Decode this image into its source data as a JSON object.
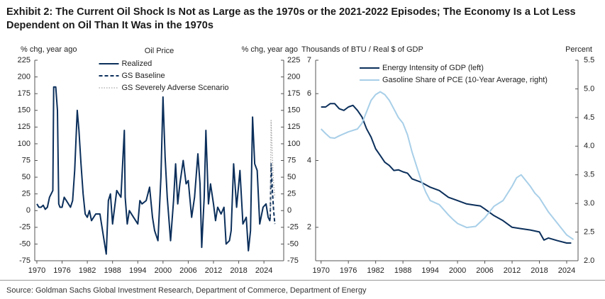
{
  "title": "Exhibit 2: The Current Oil Shock Is Not as Large as the 1970s or the 2021-2022 Episodes; The Economy Is a Lot Less Dependent on Oil Than It Was in the 1970s",
  "source": "Source: Goldman Sachs Global Investment Research, Department of Commerce, Department of Energy",
  "chart_data": [
    {
      "type": "line",
      "title": "Oil Price",
      "ylabel": "% chg, year ago",
      "y2label": "% chg, year ago",
      "xlim": [
        1969.5,
        2028.7
      ],
      "xticks": [
        1970,
        1976,
        1982,
        1988,
        1994,
        2000,
        2006,
        2012,
        2018,
        2024
      ],
      "ylim": [
        -75,
        225
      ],
      "yticks": [
        -75,
        -50,
        -25,
        0,
        25,
        50,
        75,
        100,
        125,
        150,
        175,
        200,
        225
      ],
      "y2lim": [
        -75,
        225
      ],
      "y2ticks": [
        -75,
        -50,
        -25,
        0,
        25,
        50,
        75,
        100,
        125,
        150,
        175,
        200,
        225
      ],
      "legend": "upper center",
      "series": [
        {
          "name": "Realized",
          "color": "#0b2f5b",
          "dash": "solid",
          "axis": "y",
          "x": [
            1970,
            1970.5,
            1971,
            1971.5,
            1972,
            1972.5,
            1973,
            1973.8,
            1974,
            1974.5,
            1974.9,
            1975.2,
            1975.5,
            1976,
            1976.5,
            1977,
            1978,
            1978.5,
            1979,
            1979.6,
            1980,
            1980.5,
            1981,
            1981.5,
            1982,
            1982.5,
            1983,
            1984,
            1985,
            1986,
            1986.5,
            1987,
            1987.5,
            1988,
            1989,
            1990,
            1990.8,
            1991,
            1991.5,
            1992,
            1993,
            1994,
            1994.5,
            1995,
            1996,
            1996.8,
            1997.5,
            1998,
            1998.8,
            1999.5,
            2000,
            2000.5,
            2001,
            2001.8,
            2002.5,
            2003,
            2003.5,
            2004,
            2004.8,
            2005.5,
            2006,
            2006.8,
            2007.5,
            2008.3,
            2008.8,
            2009.2,
            2009.8,
            2010.2,
            2010.8,
            2011.3,
            2012,
            2012.5,
            2013,
            2013.8,
            2014.5,
            2015,
            2015.8,
            2016.2,
            2016.8,
            2017.5,
            2018.3,
            2019,
            2019.8,
            2020.3,
            2020.8,
            2021.3,
            2021.8,
            2022.4,
            2023,
            2023.8,
            2024.5,
            2025,
            2025.4,
            2025.5
          ],
          "values": [
            10,
            5,
            5,
            8,
            2,
            5,
            20,
            30,
            185,
            185,
            150,
            10,
            5,
            5,
            20,
            15,
            5,
            15,
            60,
            150,
            120,
            70,
            25,
            -5,
            -10,
            0,
            -15,
            -5,
            -5,
            -45,
            -65,
            15,
            25,
            -20,
            30,
            20,
            120,
            20,
            -20,
            0,
            -10,
            -20,
            15,
            10,
            15,
            35,
            -10,
            -30,
            -45,
            50,
            170,
            80,
            20,
            -45,
            15,
            70,
            10,
            40,
            75,
            40,
            45,
            -10,
            20,
            85,
            40,
            -55,
            20,
            120,
            10,
            40,
            10,
            -15,
            5,
            -5,
            5,
            -50,
            -45,
            -30,
            70,
            5,
            60,
            -20,
            -10,
            -60,
            -30,
            140,
            70,
            60,
            -20,
            5,
            10,
            -10,
            -15,
            -10
          ]
        },
        {
          "name": "GS Baseline",
          "color": "#0b2f5b",
          "dash": "dashed",
          "axis": "y",
          "x": [
            2025.5,
            2025.7,
            2026,
            2026.3,
            2026.6
          ],
          "values": [
            -10,
            70,
            30,
            0,
            -20
          ]
        },
        {
          "name": "GS Severely Adverse Scenario",
          "color": "#a6a6a6",
          "dash": "dotted",
          "axis": "y",
          "x": [
            2025.5,
            2025.7,
            2026,
            2026.3,
            2026.6
          ],
          "values": [
            -10,
            135,
            80,
            40,
            20
          ]
        }
      ]
    },
    {
      "type": "line",
      "ylabel": "Thousands of BTU / Real $ of GDP",
      "y2label": "Percent",
      "xlim": [
        1968.8,
        2026.5
      ],
      "xticks": [
        1970,
        1976,
        1982,
        1988,
        1994,
        2000,
        2006,
        2012,
        2018,
        2024
      ],
      "ylim": [
        1,
        7
      ],
      "yticks": [
        2,
        4,
        6,
        7
      ],
      "y2lim": [
        2,
        5.5
      ],
      "y2ticks": [
        {
          "value": 2,
          "label": "2.0"
        },
        2.5,
        {
          "value": 3,
          "label": "3.0"
        },
        3.5,
        {
          "value": 4,
          "label": "4.0"
        },
        4.5,
        {
          "value": 5,
          "label": "5.0"
        },
        5.5
      ],
      "legend": "upper left",
      "series": [
        {
          "name": "Energy Intensity of GDP (left)",
          "color": "#0b2f5b",
          "dash": "solid",
          "axis": "y",
          "x": [
            1970,
            1971,
            1972,
            1973,
            1974,
            1975,
            1976,
            1977,
            1978,
            1979,
            1980,
            1981,
            1982,
            1983,
            1984,
            1985,
            1986,
            1987,
            1988,
            1989,
            1990,
            1992,
            1994,
            1996,
            1998,
            2000,
            2002,
            2004,
            2005,
            2006,
            2008,
            2010,
            2012,
            2014,
            2016,
            2018,
            2019,
            2020,
            2022,
            2024,
            2025
          ],
          "values": [
            5.6,
            5.6,
            5.7,
            5.7,
            5.55,
            5.5,
            5.6,
            5.65,
            5.5,
            5.3,
            4.95,
            4.7,
            4.35,
            4.15,
            3.95,
            3.85,
            3.7,
            3.72,
            3.66,
            3.62,
            3.45,
            3.35,
            3.2,
            3.1,
            2.9,
            2.8,
            2.7,
            2.66,
            2.64,
            2.55,
            2.35,
            2.2,
            2.0,
            1.96,
            1.92,
            1.86,
            1.62,
            1.68,
            1.6,
            1.53,
            1.53
          ]
        },
        {
          "name": "Gasoline Share of PCE (10-Year Average, right)",
          "color": "#a8cfe8",
          "dash": "solid",
          "axis": "y2",
          "x": [
            1970,
            1971,
            1972,
            1973,
            1974,
            1976,
            1978,
            1979,
            1980,
            1981,
            1982,
            1983,
            1984,
            1985,
            1986,
            1987,
            1988,
            1989,
            1990,
            1992,
            1993,
            1994,
            1996,
            1998,
            1999,
            2000,
            2002,
            2004,
            2006,
            2008,
            2009,
            2010,
            2012,
            2013,
            2014,
            2016,
            2017,
            2018,
            2020,
            2022,
            2024,
            2025.5
          ],
          "values": [
            4.3,
            4.22,
            4.15,
            4.14,
            4.18,
            4.25,
            4.3,
            4.4,
            4.6,
            4.8,
            4.9,
            4.95,
            4.9,
            4.8,
            4.65,
            4.5,
            4.4,
            4.2,
            3.9,
            3.4,
            3.2,
            3.05,
            2.98,
            2.8,
            2.72,
            2.65,
            2.58,
            2.6,
            2.75,
            2.95,
            3.0,
            3.05,
            3.3,
            3.45,
            3.5,
            3.3,
            3.18,
            3.1,
            2.85,
            2.65,
            2.45,
            2.37
          ]
        }
      ]
    }
  ]
}
